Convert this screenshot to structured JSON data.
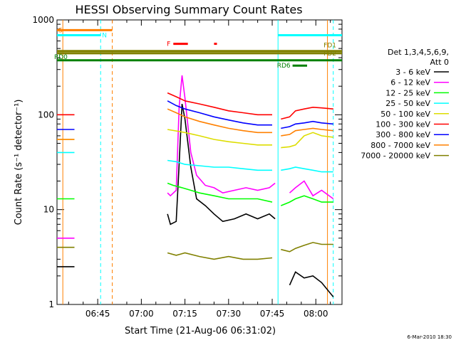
{
  "chart_data": {
    "type": "line",
    "title": "HESSI Observing Summary Count Rates",
    "xlabel": "Start Time (21-Aug-06 06:31:02)",
    "ylabel": "Count Rate (s⁻¹ detector⁻¹)",
    "y_scale": "log",
    "ylim": [
      1,
      1000
    ],
    "xlim": [
      "06:31",
      "08:09"
    ],
    "x_ticks": [
      "06:45",
      "07:00",
      "07:15",
      "07:30",
      "07:45",
      "08:00"
    ],
    "y_ticks": [
      "1",
      "10",
      "100",
      "1000"
    ],
    "legend_header": [
      "Det 1,3,4,5,6,9,",
      "Att 0"
    ],
    "series": [
      {
        "name": "3 - 6 keV",
        "color": "#000000",
        "x": [
          "06:31",
          "06:37",
          "06:38",
          "07:09",
          "07:10",
          "07:12",
          "07:13",
          "07:14",
          "07:15",
          "07:17",
          "07:19",
          "07:22",
          "07:25",
          "07:28",
          "07:32",
          "07:36",
          "07:40",
          "07:44",
          "07:46",
          "07:47",
          "07:51",
          "07:53",
          "07:56",
          "07:59",
          "08:02",
          "08:06"
        ],
        "values": [
          2.5,
          2.5,
          null,
          9,
          7,
          7.5,
          30,
          130,
          90,
          28,
          13,
          11,
          9,
          7.5,
          8,
          9,
          8,
          9,
          8,
          null,
          1.6,
          2.2,
          1.9,
          2.0,
          1.7,
          1.2
        ]
      },
      {
        "name": "6 - 12 keV",
        "color": "#ff00ff",
        "x": [
          "06:31",
          "06:37",
          "06:38",
          "07:09",
          "07:10",
          "07:12",
          "07:13",
          "07:14",
          "07:15",
          "07:17",
          "07:19",
          "07:22",
          "07:25",
          "07:28",
          "07:32",
          "07:36",
          "07:40",
          "07:44",
          "07:46",
          "07:47",
          "07:51",
          "07:53",
          "07:56",
          "07:59",
          "08:02",
          "08:06"
        ],
        "values": [
          5,
          5,
          null,
          15,
          14,
          16,
          120,
          260,
          150,
          40,
          23,
          18,
          17,
          15,
          16,
          17,
          16,
          17,
          19,
          null,
          15,
          17,
          20,
          14,
          16,
          13
        ]
      },
      {
        "name": "12 - 25 keV",
        "color": "#00ff00",
        "x": [
          "06:31",
          "06:37",
          "06:38",
          "07:09",
          "07:11",
          "07:14",
          "07:17",
          "07:20",
          "07:25",
          "07:30",
          "07:35",
          "07:40",
          "07:45",
          "07:47",
          "07:48",
          "07:51",
          "07:53",
          "07:56",
          "07:59",
          "08:02",
          "08:06"
        ],
        "values": [
          13,
          13,
          null,
          19,
          18,
          17,
          16,
          15,
          14,
          13,
          13,
          13,
          12,
          null,
          11,
          12,
          13,
          14,
          13,
          12,
          12
        ]
      },
      {
        "name": "25 - 50 keV",
        "color": "#00ffff",
        "x": [
          "06:31",
          "06:37",
          "06:38",
          "07:09",
          "07:12",
          "07:15",
          "07:20",
          "07:25",
          "07:30",
          "07:35",
          "07:40",
          "07:45",
          "07:47",
          "07:48",
          "07:51",
          "07:53",
          "07:56",
          "07:59",
          "08:02",
          "08:06"
        ],
        "values": [
          40,
          40,
          null,
          33,
          32,
          30,
          29,
          28,
          28,
          27,
          26,
          26,
          null,
          26,
          27,
          28,
          27,
          26,
          25,
          25
        ]
      },
      {
        "name": "50 - 100 keV",
        "color": "#dddd00",
        "x": [
          "06:31",
          "06:37",
          "06:38",
          "07:09",
          "07:15",
          "07:20",
          "07:25",
          "07:30",
          "07:35",
          "07:40",
          "07:45",
          "07:47",
          "07:48",
          "07:51",
          "07:53",
          "07:56",
          "07:59",
          "08:02",
          "08:06"
        ],
        "values": [
          55,
          55,
          null,
          70,
          65,
          60,
          55,
          52,
          50,
          48,
          48,
          null,
          45,
          46,
          48,
          60,
          65,
          60,
          58
        ]
      },
      {
        "name": "100 - 300 keV",
        "color": "#ff0000",
        "x": [
          "06:31",
          "06:37",
          "06:38",
          "07:09",
          "07:12",
          "07:15",
          "07:20",
          "07:25",
          "07:30",
          "07:35",
          "07:40",
          "07:45",
          "07:47",
          "07:48",
          "07:51",
          "07:53",
          "07:56",
          "07:59",
          "08:02",
          "08:06"
        ],
        "values": [
          100,
          100,
          null,
          170,
          155,
          140,
          130,
          120,
          110,
          105,
          100,
          100,
          null,
          90,
          95,
          110,
          115,
          120,
          118,
          115
        ]
      },
      {
        "name": "300 - 800 keV",
        "color": "#0000ff",
        "x": [
          "06:31",
          "06:37",
          "06:38",
          "07:09",
          "07:12",
          "07:15",
          "07:20",
          "07:25",
          "07:30",
          "07:35",
          "07:40",
          "07:45",
          "07:47",
          "07:48",
          "07:51",
          "07:53",
          "07:56",
          "07:59",
          "08:02",
          "08:06"
        ],
        "values": [
          70,
          70,
          null,
          140,
          125,
          115,
          105,
          95,
          88,
          82,
          78,
          78,
          null,
          72,
          75,
          80,
          82,
          85,
          82,
          80
        ]
      },
      {
        "name": "800 - 7000 keV",
        "color": "#ff8000",
        "x": [
          "06:31",
          "06:37",
          "06:38",
          "07:09",
          "07:12",
          "07:15",
          "07:20",
          "07:25",
          "07:30",
          "07:35",
          "07:40",
          "07:45",
          "07:47",
          "07:48",
          "07:51",
          "07:53",
          "07:56",
          "07:59",
          "08:02",
          "08:06"
        ],
        "values": [
          55,
          55,
          null,
          115,
          105,
          95,
          85,
          78,
          72,
          68,
          65,
          65,
          null,
          60,
          62,
          68,
          70,
          72,
          70,
          68
        ]
      },
      {
        "name": "7000 - 20000 keV",
        "color": "#808000",
        "x": [
          "06:31",
          "06:37",
          "06:38",
          "07:09",
          "07:12",
          "07:15",
          "07:20",
          "07:25",
          "07:30",
          "07:35",
          "07:40",
          "07:45",
          "07:47",
          "07:48",
          "07:51",
          "07:53",
          "07:56",
          "07:59",
          "08:02",
          "08:06"
        ],
        "values": [
          4,
          4,
          null,
          3.5,
          3.3,
          3.5,
          3.2,
          3.0,
          3.2,
          3.0,
          3.0,
          3.1,
          null,
          3.8,
          3.6,
          3.9,
          4.2,
          4.5,
          4.3,
          4.3
        ]
      }
    ],
    "flags": [
      {
        "label": "S",
        "color": "#ff8000",
        "x_start": "06:31",
        "x_end": "06:50",
        "y": 780
      },
      {
        "label": "N",
        "color": "#00ffff",
        "x_start": "06:31",
        "x_end": "06:46",
        "y": 690
      },
      {
        "label": "F",
        "color": "#ff0000",
        "x_start": "07:11",
        "x_end": "07:16",
        "y": 560
      },
      {
        "label": "",
        "color": "#ff0000",
        "x_start": "07:25",
        "x_end": "07:26",
        "y": 560
      },
      {
        "label": "",
        "color": "#00ffff",
        "x_start": "07:47",
        "x_end": "08:09",
        "y": 690
      },
      {
        "label": "FD1",
        "color": "#808000",
        "x_start": "06:31",
        "x_end": "08:09",
        "y": 470
      },
      {
        "label": "FD2",
        "color": "#808000",
        "x_start": "06:31",
        "x_end": "08:09",
        "y": 445
      },
      {
        "label": "RD0",
        "color": "#008000",
        "x_start": "06:31",
        "x_end": "08:09",
        "y": 375
      },
      {
        "label": "RD6",
        "color": "#008000",
        "x_start": "07:52",
        "x_end": "07:57",
        "y": 330
      }
    ],
    "markers": [
      {
        "x": "06:33",
        "color": "#ff8000",
        "style": "solid"
      },
      {
        "x": "06:46",
        "color": "#00ffff",
        "style": "dashed"
      },
      {
        "x": "06:50",
        "color": "#ff8000",
        "style": "dashed"
      },
      {
        "x": "07:47",
        "color": "#00ffff",
        "style": "solid"
      },
      {
        "x": "08:06",
        "color": "#00ffff",
        "style": "dashed"
      },
      {
        "x": "08:04",
        "color": "#ff8000",
        "style": "solid"
      }
    ],
    "footer": "6-Mar-2010 18:30",
    "grid": false
  }
}
